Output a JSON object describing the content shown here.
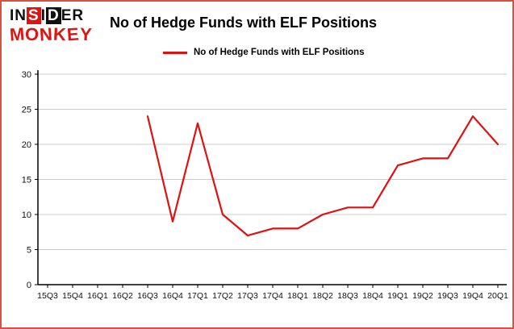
{
  "brand": {
    "line1": "INSIDER",
    "line2": "MONKEY"
  },
  "title": "No of Hedge Funds with ELF Positions",
  "legend": {
    "label": "No of Hedge Funds with ELF Positions"
  },
  "colors": {
    "frame": "#d9513e",
    "line": "#de1111",
    "grid": "#cccccc",
    "axis": "#000000",
    "label_text": "#111111",
    "brand_red": "#e01212"
  },
  "chart_data": {
    "type": "line",
    "title": "No of Hedge Funds with ELF Positions",
    "categories": [
      "15Q3",
      "15Q4",
      "16Q1",
      "16Q2",
      "16Q3",
      "16Q4",
      "17Q1",
      "17Q2",
      "17Q3",
      "17Q4",
      "18Q1",
      "18Q2",
      "18Q3",
      "18Q4",
      "19Q1",
      "19Q2",
      "19Q3",
      "19Q4",
      "20Q1"
    ],
    "series": [
      {
        "name": "No of Hedge Funds with ELF Positions",
        "color": "#de1111",
        "values": [
          null,
          null,
          null,
          null,
          24,
          9,
          23,
          10,
          7,
          8,
          8,
          10,
          11,
          11,
          17,
          18,
          18,
          24,
          20
        ]
      }
    ],
    "xlabel": "",
    "ylabel": "",
    "ylim": [
      0,
      30
    ],
    "yticks": [
      0,
      5,
      10,
      15,
      20,
      25,
      30
    ],
    "grid": true,
    "legend_position": "top-left"
  }
}
